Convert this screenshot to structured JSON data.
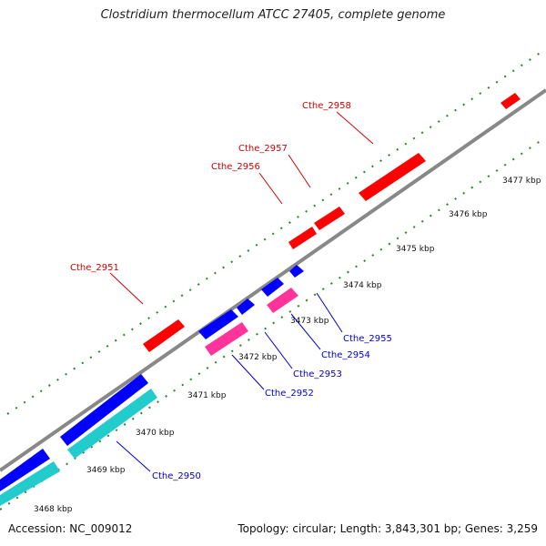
{
  "title": "Clostridium thermocellum ATCC 27405, complete genome",
  "footer": {
    "accession": "Accession: NC_009012",
    "stats": "Topology: circular; Length: 3,843,301 bp; Genes: 3,259"
  },
  "colors": {
    "forward_cds": "#ff0000",
    "reverse_cds": "#0000ff",
    "reverse_rna": "#ff3399",
    "reverse_other": "#22cccc",
    "backbone": "#888888",
    "ticks": "#228822",
    "forward_label": "#cc0000",
    "reverse_label": "#0000cc"
  },
  "scale_labels": [
    "3468 kbp",
    "3469 kbp",
    "3470 kbp",
    "3471 kbp",
    "3472 kbp",
    "3473 kbp",
    "3474 kbp",
    "3475 kbp",
    "3476 kbp",
    "3477 kbp"
  ],
  "genes": [
    {
      "name": "Cthe_2958",
      "strand": "forward"
    },
    {
      "name": "Cthe_2957",
      "strand": "forward"
    },
    {
      "name": "Cthe_2956",
      "strand": "forward"
    },
    {
      "name": "Cthe_2951",
      "strand": "forward"
    },
    {
      "name": "Cthe_2955",
      "strand": "reverse"
    },
    {
      "name": "Cthe_2954",
      "strand": "reverse"
    },
    {
      "name": "Cthe_2953",
      "strand": "reverse"
    },
    {
      "name": "Cthe_2952",
      "strand": "reverse"
    },
    {
      "name": "Cthe_2950",
      "strand": "reverse"
    }
  ]
}
